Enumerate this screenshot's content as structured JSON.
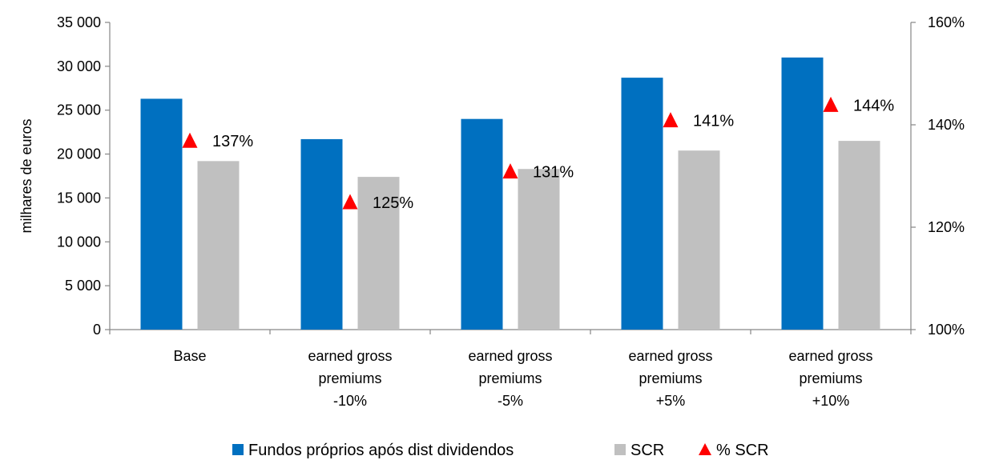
{
  "chart_data": {
    "type": "bar",
    "categories": [
      [
        "Base"
      ],
      [
        "earned gross",
        "premiums",
        "-10%"
      ],
      [
        "earned gross",
        "premiums",
        "-5%"
      ],
      [
        "earned gross",
        "premiums",
        "+5%"
      ],
      [
        "earned gross",
        "premiums",
        "+10%"
      ]
    ],
    "series": [
      {
        "name": "Fundos próprios após dist dividendos",
        "values": [
          26300,
          21700,
          24000,
          28700,
          31000
        ],
        "color": "#0070C0",
        "axis": "left"
      },
      {
        "name": "SCR",
        "values": [
          19200,
          17400,
          18300,
          20400,
          21500
        ],
        "color": "#C0C0C0",
        "axis": "left"
      },
      {
        "name": "% SCR",
        "values": [
          137,
          125,
          131,
          141,
          144
        ],
        "labels": [
          "137%",
          "125%",
          "131%",
          "141%",
          "144%"
        ],
        "color": "#FF0000",
        "marker": "triangle",
        "axis": "right"
      }
    ],
    "ylabel": "milhares de euros",
    "ylim": [
      0,
      35000
    ],
    "yticks": [
      0,
      5000,
      10000,
      15000,
      20000,
      25000,
      30000,
      35000
    ],
    "ytick_labels": [
      "0",
      "5 000",
      "10 000",
      "15 000",
      "20 000",
      "25 000",
      "30 000",
      "35 000"
    ],
    "y2lim": [
      100,
      160
    ],
    "y2ticks": [
      100,
      120,
      140,
      160
    ],
    "y2tick_labels": [
      "100%",
      "120%",
      "140%",
      "160%"
    ],
    "legend_position": "bottom",
    "grid": false
  }
}
